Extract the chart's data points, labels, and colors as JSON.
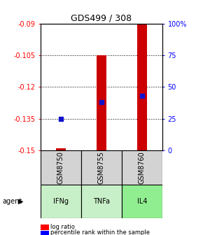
{
  "title": "GDS499 / 308",
  "ylim_left": [
    -0.15,
    -0.09
  ],
  "yticks_left": [
    -0.15,
    -0.135,
    -0.12,
    -0.105,
    -0.09
  ],
  "ytick_labels_left": [
    "-0.15",
    "-0.135",
    "-0.12",
    "-0.105",
    "-0.09"
  ],
  "ytick_labels_right": [
    "0",
    "25",
    "50",
    "75",
    "100%"
  ],
  "samples": [
    "GSM8750",
    "GSM8755",
    "GSM8760"
  ],
  "agents": [
    "IFNg",
    "TNFa",
    "IL4"
  ],
  "bar_bottom": -0.15,
  "log_ratios": [
    -0.149,
    -0.105,
    -0.09
  ],
  "percentile_ranks": [
    25,
    38,
    43
  ],
  "bar_color": "#cc0000",
  "dot_color": "#1111cc",
  "bar_width": 0.25,
  "background_plot": "#ffffff",
  "background_sample": "#d3d3d3",
  "agent_colors": [
    "#c8f0c8",
    "#c8f0c8",
    "#90ee90"
  ],
  "title_fontsize": 9,
  "tick_fontsize": 7,
  "label_fontsize": 7,
  "legend_fontsize": 6
}
